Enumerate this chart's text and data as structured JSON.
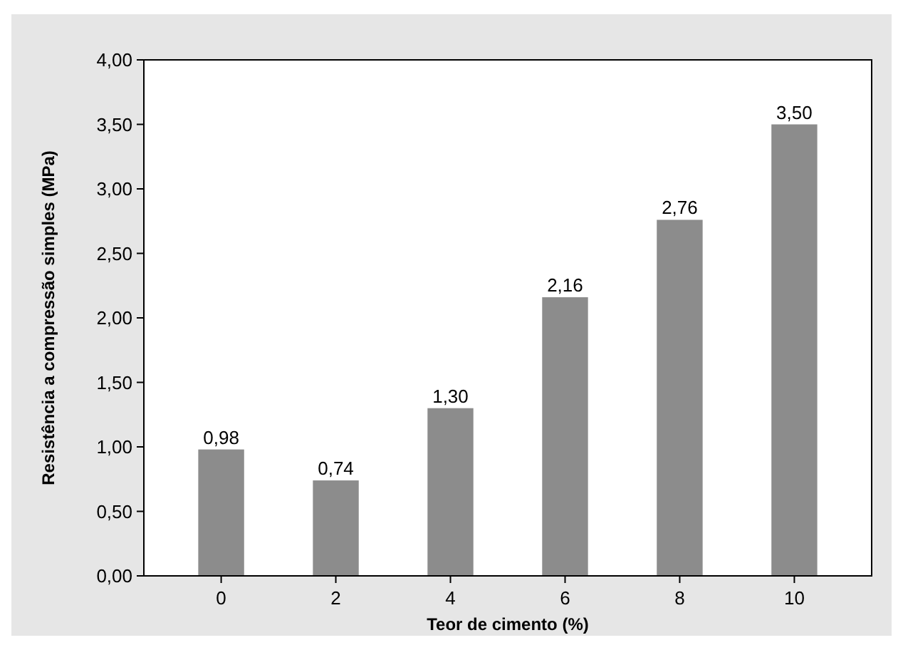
{
  "chart_data": {
    "type": "bar",
    "xlabel": "Teor de cimento (%)",
    "ylabel": "Resistência a compressão simples (MPa)",
    "categories": [
      "0",
      "2",
      "4",
      "6",
      "8",
      "10"
    ],
    "values": [
      0.98,
      0.74,
      1.3,
      2.16,
      2.76,
      3.5
    ],
    "value_labels": [
      "0,98",
      "0,74",
      "1,30",
      "2,16",
      "2,76",
      "3,50"
    ],
    "color": "#8c8c8c",
    "ylim": [
      0,
      4
    ],
    "yticks": [
      {
        "value": 0,
        "label": "0,00"
      },
      {
        "value": 0.5,
        "label": "0,50"
      },
      {
        "value": 1,
        "label": "1,00"
      },
      {
        "value": 1.5,
        "label": "1,50"
      },
      {
        "value": 2,
        "label": "2,00"
      },
      {
        "value": 2.5,
        "label": "2,50"
      },
      {
        "value": 3,
        "label": "3,00"
      },
      {
        "value": 3.5,
        "label": "3,50"
      },
      {
        "value": 4,
        "label": "4,00"
      }
    ],
    "grid": false
  }
}
